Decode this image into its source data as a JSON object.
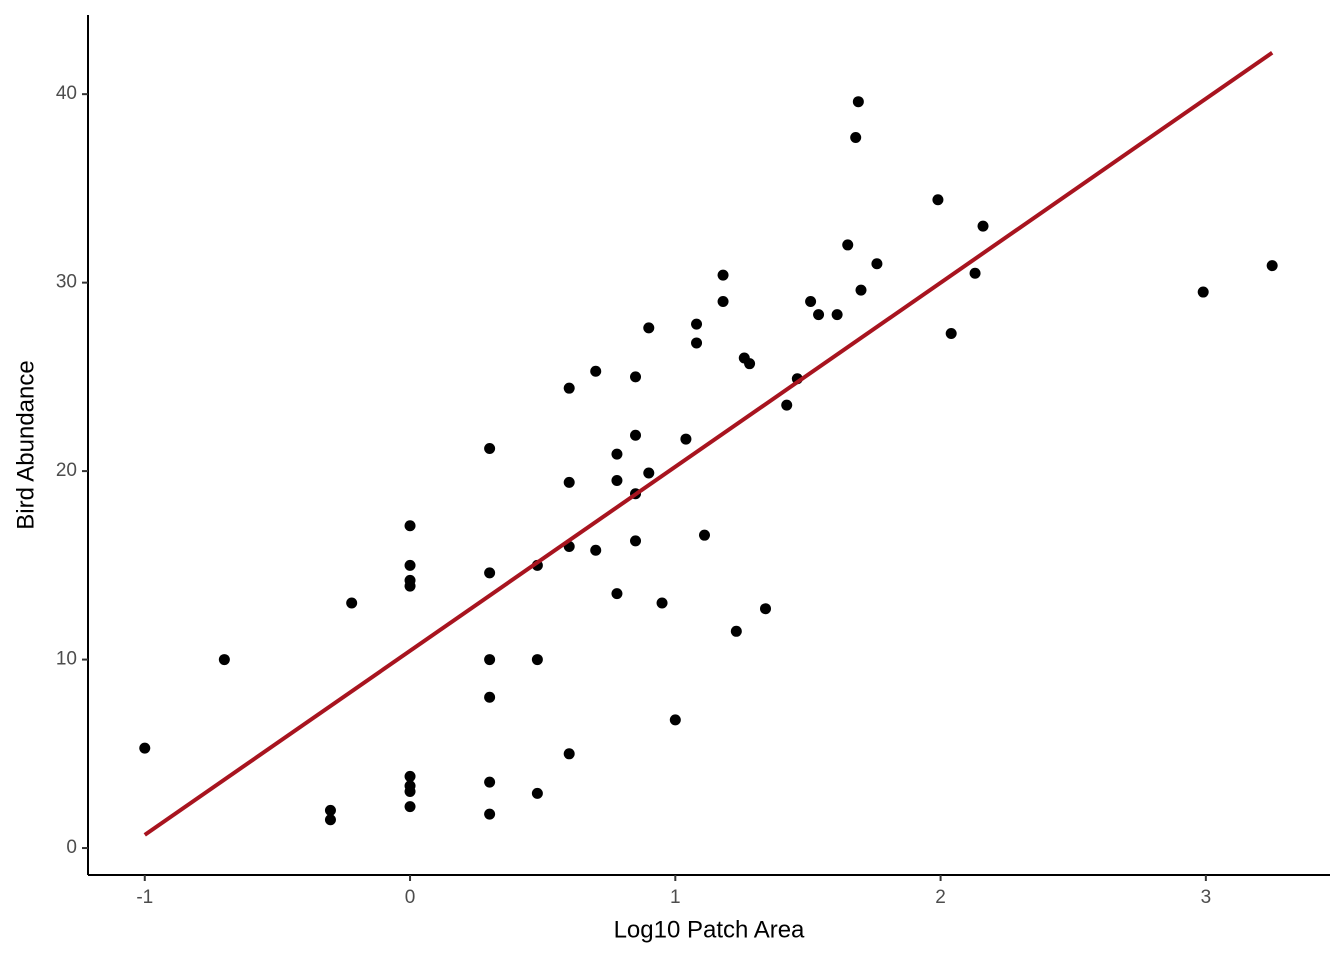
{
  "chart_data": {
    "type": "scatter",
    "x_label": "Log10 Patch Area",
    "y_label": "Bird Abundance",
    "x": [
      -1,
      -0.7,
      -0.3,
      -0.3,
      -0.22,
      0,
      0,
      0,
      0,
      0,
      0,
      0,
      0,
      0.3,
      0.3,
      0.3,
      0.3,
      0.3,
      0.3,
      0.48,
      0.48,
      0.48,
      0.6,
      0.6,
      0.6,
      0.6,
      0.7,
      0.7,
      0.78,
      0.78,
      0.78,
      0.85,
      0.85,
      0.85,
      0.85,
      0.9,
      0.9,
      0.95,
      1.0,
      1.04,
      1.08,
      1.08,
      1.11,
      1.18,
      1.18,
      1.23,
      1.26,
      1.28,
      1.34,
      1.42,
      1.46,
      1.51,
      1.54,
      1.61,
      1.65,
      1.68,
      1.69,
      1.7,
      1.76,
      1.99,
      2.04,
      2.13,
      2.16,
      2.99,
      3.25
    ],
    "y": [
      5.3,
      10,
      2.0,
      1.5,
      13.0,
      17.1,
      15.0,
      14.2,
      13.9,
      3.8,
      3.3,
      3.0,
      2.2,
      21.2,
      14.6,
      10.0,
      8.0,
      3.5,
      1.8,
      15.0,
      10,
      2.9,
      24.4,
      19.4,
      16.0,
      5.0,
      25.3,
      15.8,
      20.9,
      19.5,
      13.5,
      25.0,
      21.9,
      18.8,
      16.3,
      27.6,
      19.9,
      13.0,
      6.8,
      21.7,
      27.8,
      26.8,
      16.6,
      30.4,
      29.0,
      11.5,
      26.0,
      25.7,
      12.7,
      23.5,
      24.9,
      29.0,
      28.3,
      28.3,
      32.0,
      37.7,
      39.6,
      29.6,
      31.0,
      34.4,
      27.3,
      30.5,
      33.0,
      29.5,
      30.9
    ],
    "color": "#000000",
    "fit": {
      "x": [
        -1,
        3.25
      ],
      "y": [
        0.7,
        42.2
      ],
      "color": "#a8141f"
    },
    "xlim": [
      -1.214,
      3.468
    ],
    "ylim": [
      -1.43,
      44.2
    ],
    "xticks": [
      -1,
      0,
      1,
      2,
      3
    ],
    "yticks": [
      0,
      10,
      20,
      30,
      40
    ],
    "grid": false
  }
}
